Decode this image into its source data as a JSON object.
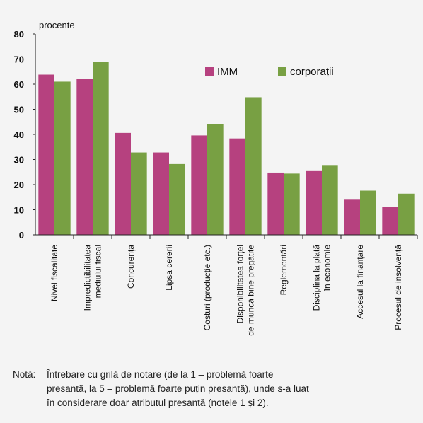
{
  "chart_data": {
    "type": "bar",
    "y_label": "procente",
    "categories": [
      "Nivel fiscalitate",
      "Impredictibilitatea\nmediului fiscal",
      "Concurența",
      "Lipsa cererii",
      "Costuri (producție etc.)",
      "Disponibilitatea forței\nde muncă bine pregătite",
      "Reglementări",
      "Disciplina la plată\nîn economie",
      "Accesul la finanțare",
      "Procesul de insolvență"
    ],
    "series": [
      {
        "name": "IMM",
        "color": "#b6417f",
        "values": [
          63.8,
          62.2,
          40.6,
          32.8,
          39.6,
          38.4,
          24.8,
          25.4,
          14.0,
          11.2
        ]
      },
      {
        "name": "corporații",
        "color": "#78a043",
        "values": [
          61.0,
          69.0,
          32.8,
          28.2,
          44.0,
          54.8,
          24.4,
          27.8,
          17.6,
          16.4
        ]
      }
    ],
    "ylim": [
      0,
      80
    ],
    "yticks": [
      0,
      10,
      20,
      30,
      40,
      50,
      60,
      70,
      80
    ],
    "grid": false,
    "legend": "top-right",
    "note": {
      "label": "Notă:",
      "lines": [
        "Întrebare cu grilă de notare (de la 1 – problemă foarte",
        "presantă, la 5 – problemă foarte puțin presantă), unde s-a luat",
        "în considerare doar atributul presantă (notele 1 și 2)."
      ]
    }
  }
}
